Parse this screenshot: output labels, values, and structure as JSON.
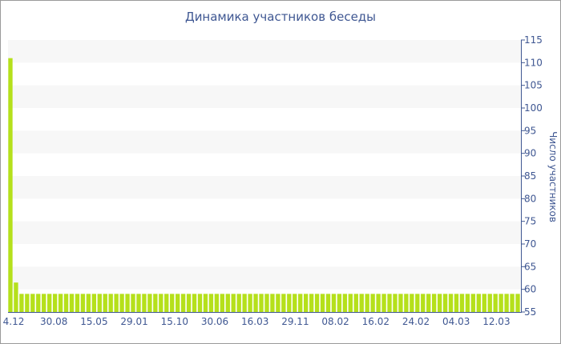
{
  "chart_data": {
    "type": "bar",
    "title": "Динамика участников беседы",
    "ylabel": "Число участников",
    "xlabel": "",
    "ylim": [
      55,
      115
    ],
    "y_ticks": [
      55,
      60,
      65,
      70,
      75,
      80,
      85,
      90,
      95,
      100,
      105,
      110,
      115
    ],
    "x_tick_labels": [
      "4.12",
      "30.08",
      "15.05",
      "29.01",
      "15.10",
      "30.06",
      "16.03",
      "29.11",
      "08.02",
      "16.02",
      "24.02",
      "04.03",
      "12.03"
    ],
    "y_axis_position": "right",
    "grid": "horizontal alternating bands",
    "values": [
      111,
      61.5,
      59,
      59,
      59,
      59,
      59,
      59,
      59,
      59,
      59,
      59,
      59,
      59,
      59,
      59,
      59,
      59,
      59,
      59,
      59,
      59,
      59,
      59,
      59,
      59,
      59,
      59,
      59,
      59,
      59,
      59,
      59,
      59,
      59,
      59,
      59,
      59,
      59,
      59,
      59,
      59,
      59,
      59,
      59,
      59,
      59,
      59,
      59,
      59,
      59,
      59,
      59,
      59,
      59,
      59,
      59,
      59,
      59,
      59,
      59,
      59,
      59,
      59,
      59,
      59,
      59,
      59,
      59,
      59,
      59,
      59,
      59,
      59,
      59,
      59,
      59,
      59,
      59,
      59,
      59,
      59,
      59,
      59,
      59,
      59,
      59,
      59,
      59,
      59,
      59,
      59
    ],
    "bar_color": "#b5e01b",
    "band_color": "#f7f7f7",
    "axis_color": "#3f5792"
  }
}
